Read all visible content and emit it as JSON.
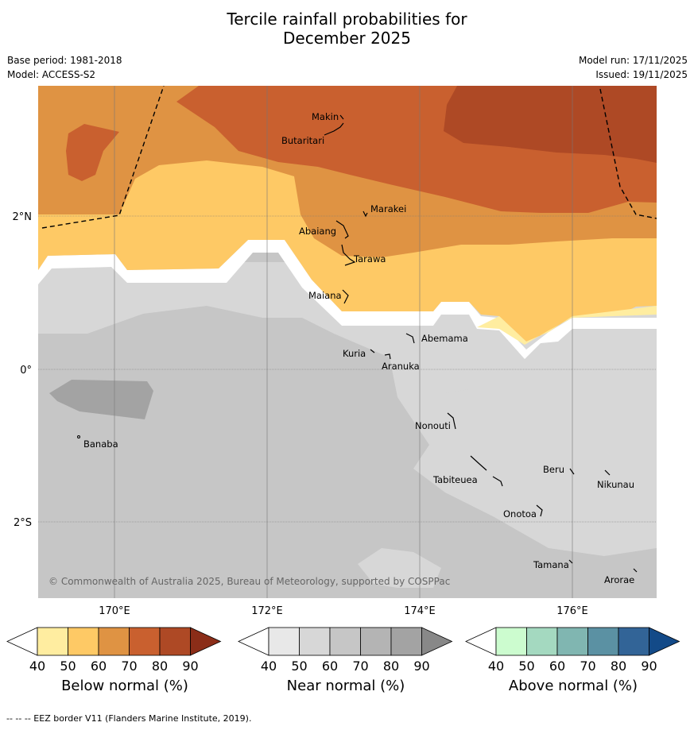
{
  "title_line1": "Tercile rainfall probabilities for",
  "title_line2": "December 2025",
  "meta": {
    "base_period": "Base period: 1981-2018",
    "model": "Model: ACCESS-S2",
    "model_run": "Model run: 17/11/2025",
    "issued": "Issued: 19/11/2025"
  },
  "map": {
    "lat_labels": [
      "2°N",
      "0°",
      "2°S"
    ],
    "lon_labels": [
      "170°E",
      "172°E",
      "174°E",
      "176°E"
    ],
    "places": [
      {
        "name": "Makin"
      },
      {
        "name": "Butaritari"
      },
      {
        "name": "Marakei"
      },
      {
        "name": "Abaiang"
      },
      {
        "name": "Tarawa"
      },
      {
        "name": "Maiana"
      },
      {
        "name": "Abemama"
      },
      {
        "name": "Kuria"
      },
      {
        "name": "Aranuka"
      },
      {
        "name": "Banaba"
      },
      {
        "name": "Nonouti"
      },
      {
        "name": "Tabiteuea"
      },
      {
        "name": "Beru"
      },
      {
        "name": "Nikunau"
      },
      {
        "name": "Onotoa"
      },
      {
        "name": "Tamana"
      },
      {
        "name": "Arorae"
      }
    ],
    "copyright": "© Commonwealth of Australia 2025, Bureau of Meteorology, supported by COSPPac"
  },
  "colorbars": [
    {
      "label": "Below normal (%)",
      "ticks": [
        "40",
        "50",
        "60",
        "70",
        "80",
        "90"
      ],
      "colors": [
        "#ffffff",
        "#ffeda0",
        "#fec965",
        "#df9343",
        "#c9602f",
        "#ae4925",
        "#8b2d18"
      ]
    },
    {
      "label": "Near normal (%)",
      "ticks": [
        "40",
        "50",
        "60",
        "70",
        "80",
        "90"
      ],
      "colors": [
        "#ffffff",
        "#e8e8e8",
        "#d7d7d7",
        "#c6c6c6",
        "#b4b4b4",
        "#a3a3a3",
        "#888888"
      ]
    },
    {
      "label": "Above normal (%)",
      "ticks": [
        "40",
        "50",
        "60",
        "70",
        "80",
        "90"
      ],
      "colors": [
        "#ffffff",
        "#ccfccf",
        "#a4d9c0",
        "#80b6b1",
        "#5b91a3",
        "#326497",
        "#134a88"
      ]
    }
  ],
  "footer": "--  --  -- EEZ border V11 (Flanders Marine Institute, 2019)."
}
